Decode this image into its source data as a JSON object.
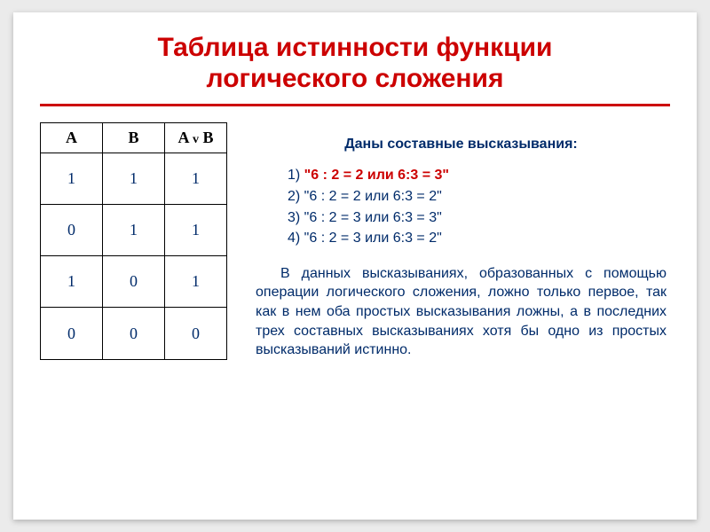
{
  "title_line1": "Таблица истинности функции",
  "title_line2": "логического сложения",
  "table": {
    "headers": {
      "a": "A",
      "b": "B",
      "ab_left": "A ",
      "ab_op": "v",
      "ab_right": " B"
    },
    "rows": [
      {
        "a": "1",
        "b": "1",
        "r": "1"
      },
      {
        "a": "0",
        "b": "1",
        "r": "1"
      },
      {
        "a": "1",
        "b": "0",
        "r": "1"
      },
      {
        "a": "0",
        "b": "0",
        "r": "0"
      }
    ]
  },
  "right": {
    "heading": "Даны составные высказывания:",
    "items": [
      {
        "n": "1) ",
        "t": "\"6 : 2 = 2 или 6:3 = 3\"",
        "highlight": true
      },
      {
        "n": "2) ",
        "t": "\"6 : 2 = 2 или 6:3 = 2\"",
        "highlight": false
      },
      {
        "n": "3) ",
        "t": "\"6 : 2 = 3 или 6:3 = 3\"",
        "highlight": false
      },
      {
        "n": "4) ",
        "t": "\"6 : 2 = 3 или 6:3 = 2\"",
        "highlight": false
      }
    ],
    "paragraph": "В данных высказываниях, образованных с помощью операции логического сложения, ложно только первое, так как в нем оба простых высказывания ложны, а в последних трех составных высказываниях хотя бы одно из простых высказываний истинно."
  }
}
